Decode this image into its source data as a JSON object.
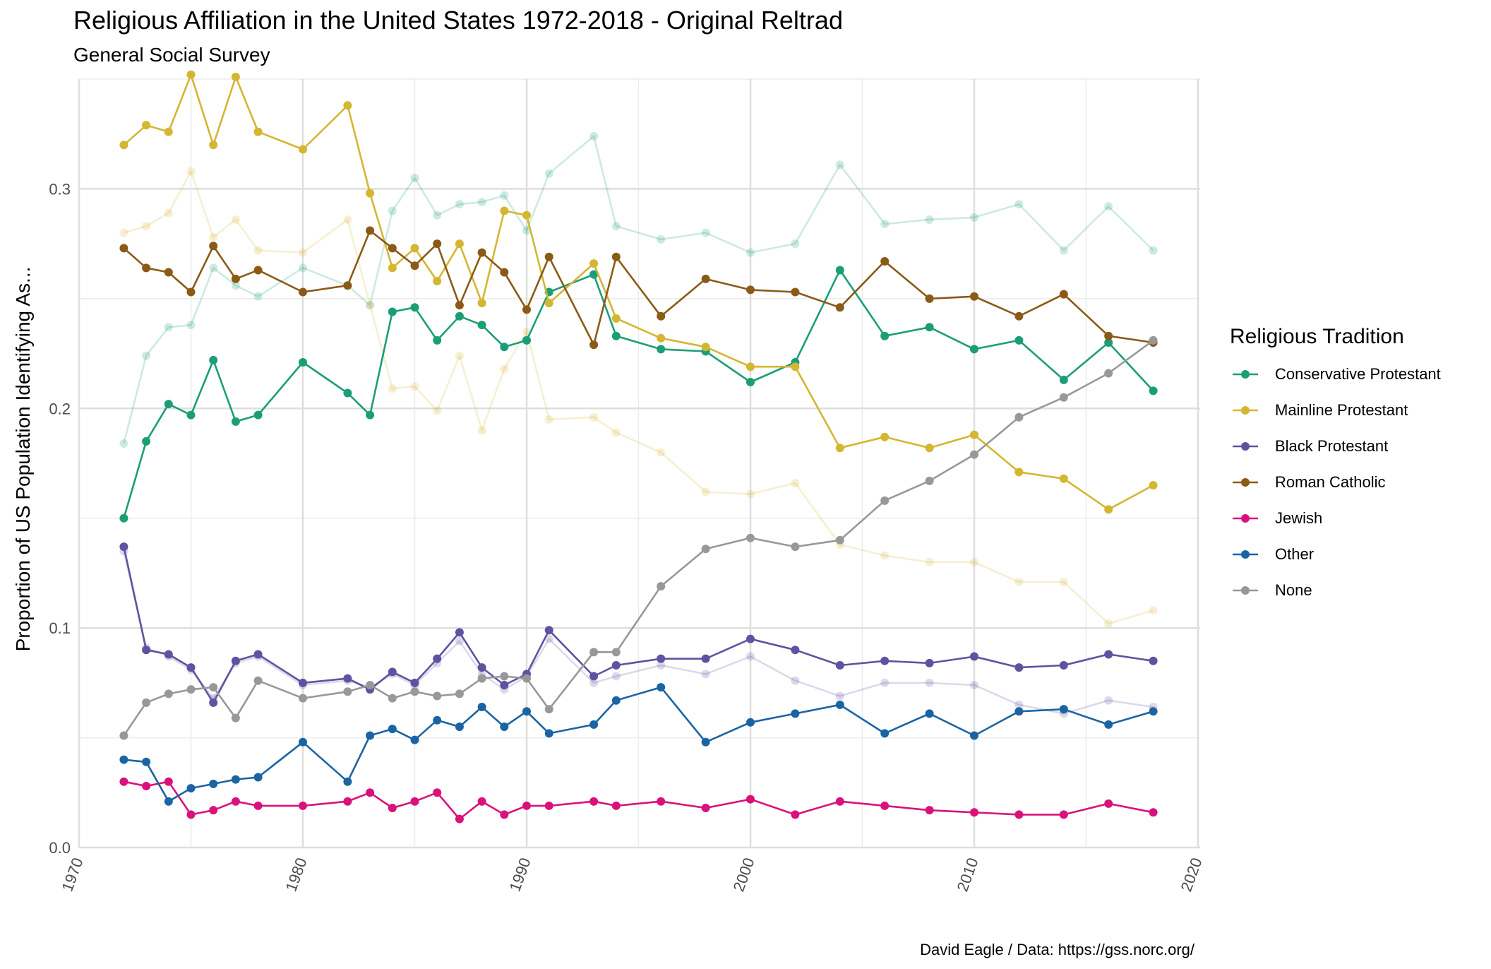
{
  "chart_data": {
    "type": "line",
    "title": "Religious Affiliation in the United States 1972-2018 - Original Reltrad",
    "subtitle": "General Social Survey",
    "caption": "David Eagle / Data: https://gss.norc.org/",
    "xlabel": "",
    "ylabel": "Proportion of US Population Identifying As...",
    "xlim": [
      1970,
      2020
    ],
    "ylim": [
      0,
      0.35
    ],
    "x_ticks": [
      "1970",
      "1980",
      "1990",
      "2000",
      "2010",
      "2020"
    ],
    "y_ticks": [
      "0.0",
      "0.1",
      "0.2",
      "0.3"
    ],
    "grid": true,
    "legend_title": "Religious Tradition",
    "legend_position": "right",
    "x": [
      1972,
      1973,
      1974,
      1975,
      1976,
      1977,
      1978,
      1980,
      1982,
      1983,
      1984,
      1985,
      1986,
      1987,
      1988,
      1989,
      1990,
      1991,
      1993,
      1994,
      1996,
      1998,
      2000,
      2002,
      2004,
      2006,
      2008,
      2010,
      2012,
      2014,
      2016,
      2018
    ],
    "series": [
      {
        "name": "Conservative Protestant",
        "color": "#1b9e77",
        "values": [
          0.15,
          0.185,
          0.202,
          0.197,
          0.222,
          0.194,
          0.197,
          0.221,
          0.207,
          0.197,
          0.244,
          0.246,
          0.231,
          0.242,
          0.238,
          0.228,
          0.231,
          0.253,
          0.261,
          0.233,
          0.227,
          0.226,
          0.212,
          0.221,
          0.263,
          0.233,
          0.237,
          0.227,
          0.231,
          0.213,
          0.23,
          0.208
        ]
      },
      {
        "name": "Mainline Protestant",
        "color": "#d4b631",
        "values": [
          0.32,
          0.329,
          0.326,
          0.352,
          0.32,
          0.351,
          0.326,
          0.318,
          0.338,
          0.298,
          0.264,
          0.273,
          0.258,
          0.275,
          0.248,
          0.29,
          0.288,
          0.248,
          0.266,
          0.241,
          0.232,
          0.228,
          0.219,
          0.219,
          0.182,
          0.187,
          0.182,
          0.188,
          0.171,
          0.168,
          0.154,
          0.165
        ]
      },
      {
        "name": "Black Protestant",
        "color": "#5e53a1",
        "values": [
          0.137,
          0.09,
          0.088,
          0.082,
          0.066,
          0.085,
          0.088,
          0.075,
          0.077,
          0.072,
          0.08,
          0.075,
          0.086,
          0.098,
          0.082,
          0.074,
          0.079,
          0.099,
          0.078,
          0.083,
          0.086,
          0.086,
          0.095,
          0.09,
          0.083,
          0.085,
          0.084,
          0.087,
          0.082,
          0.083,
          0.088,
          0.085
        ]
      },
      {
        "name": "Roman Catholic",
        "color": "#8b5a16",
        "values": [
          0.273,
          0.264,
          0.262,
          0.253,
          0.274,
          0.259,
          0.263,
          0.253,
          0.256,
          0.281,
          0.273,
          0.265,
          0.275,
          0.247,
          0.271,
          0.262,
          0.245,
          0.269,
          0.229,
          0.269,
          0.242,
          0.259,
          0.254,
          0.253,
          0.246,
          0.267,
          0.25,
          0.251,
          0.242,
          0.252,
          0.233,
          0.23
        ]
      },
      {
        "name": "Jewish",
        "color": "#d9127b",
        "values": [
          0.03,
          0.028,
          0.03,
          0.015,
          0.017,
          0.021,
          0.019,
          0.019,
          0.021,
          0.025,
          0.018,
          0.021,
          0.025,
          0.013,
          0.021,
          0.015,
          0.019,
          0.019,
          0.021,
          0.019,
          0.021,
          0.018,
          0.022,
          0.015,
          0.021,
          0.019,
          0.017,
          0.016,
          0.015,
          0.015,
          0.02,
          0.016
        ]
      },
      {
        "name": "Other",
        "color": "#1b64a3",
        "values": [
          0.04,
          0.039,
          0.021,
          0.027,
          0.029,
          0.031,
          0.032,
          0.048,
          0.03,
          0.051,
          0.054,
          0.049,
          0.058,
          0.055,
          0.064,
          0.055,
          0.062,
          0.052,
          0.056,
          0.067,
          0.073,
          0.048,
          0.057,
          0.061,
          0.065,
          0.052,
          0.061,
          0.051,
          0.062,
          0.063,
          0.056,
          0.062
        ]
      },
      {
        "name": "None",
        "color": "#989898",
        "values": [
          0.051,
          0.066,
          0.07,
          0.072,
          0.073,
          0.059,
          0.076,
          0.068,
          0.071,
          0.074,
          0.068,
          0.071,
          0.069,
          0.07,
          0.077,
          0.078,
          0.077,
          0.063,
          0.089,
          0.089,
          0.119,
          0.136,
          0.141,
          0.137,
          0.14,
          0.158,
          0.167,
          0.179,
          0.196,
          0.205,
          0.216,
          0.231
        ]
      }
    ],
    "faded_series": [
      {
        "color": "#1b9e77",
        "values": [
          0.184,
          0.224,
          0.237,
          0.238,
          0.264,
          0.256,
          0.251,
          0.264,
          0.256,
          0.247,
          0.29,
          0.305,
          0.288,
          0.293,
          0.294,
          0.297,
          0.281,
          0.307,
          0.324,
          0.283,
          0.277,
          0.28,
          0.271,
          0.275,
          0.311,
          0.284,
          0.286,
          0.287,
          0.293,
          0.272,
          0.292,
          0.272
        ]
      },
      {
        "color": "#d4b631",
        "values": [
          0.28,
          0.283,
          0.289,
          0.308,
          0.278,
          0.286,
          0.272,
          0.271,
          0.286,
          0.247,
          0.209,
          0.21,
          0.199,
          0.224,
          0.19,
          0.218,
          0.235,
          0.195,
          0.196,
          0.189,
          0.18,
          0.162,
          0.161,
          0.166,
          0.138,
          0.133,
          0.13,
          0.13,
          0.121,
          0.121,
          0.102,
          0.108
        ]
      },
      {
        "color": "#5e53a1",
        "values": [
          0.135,
          0.091,
          0.087,
          0.081,
          0.068,
          0.084,
          0.087,
          0.074,
          0.076,
          0.073,
          0.079,
          0.074,
          0.084,
          0.094,
          0.079,
          0.072,
          0.078,
          0.095,
          0.075,
          0.078,
          0.083,
          0.079,
          0.087,
          0.076,
          0.069,
          0.075,
          0.075,
          0.074,
          0.065,
          0.061,
          0.067,
          0.064
        ]
      }
    ]
  }
}
